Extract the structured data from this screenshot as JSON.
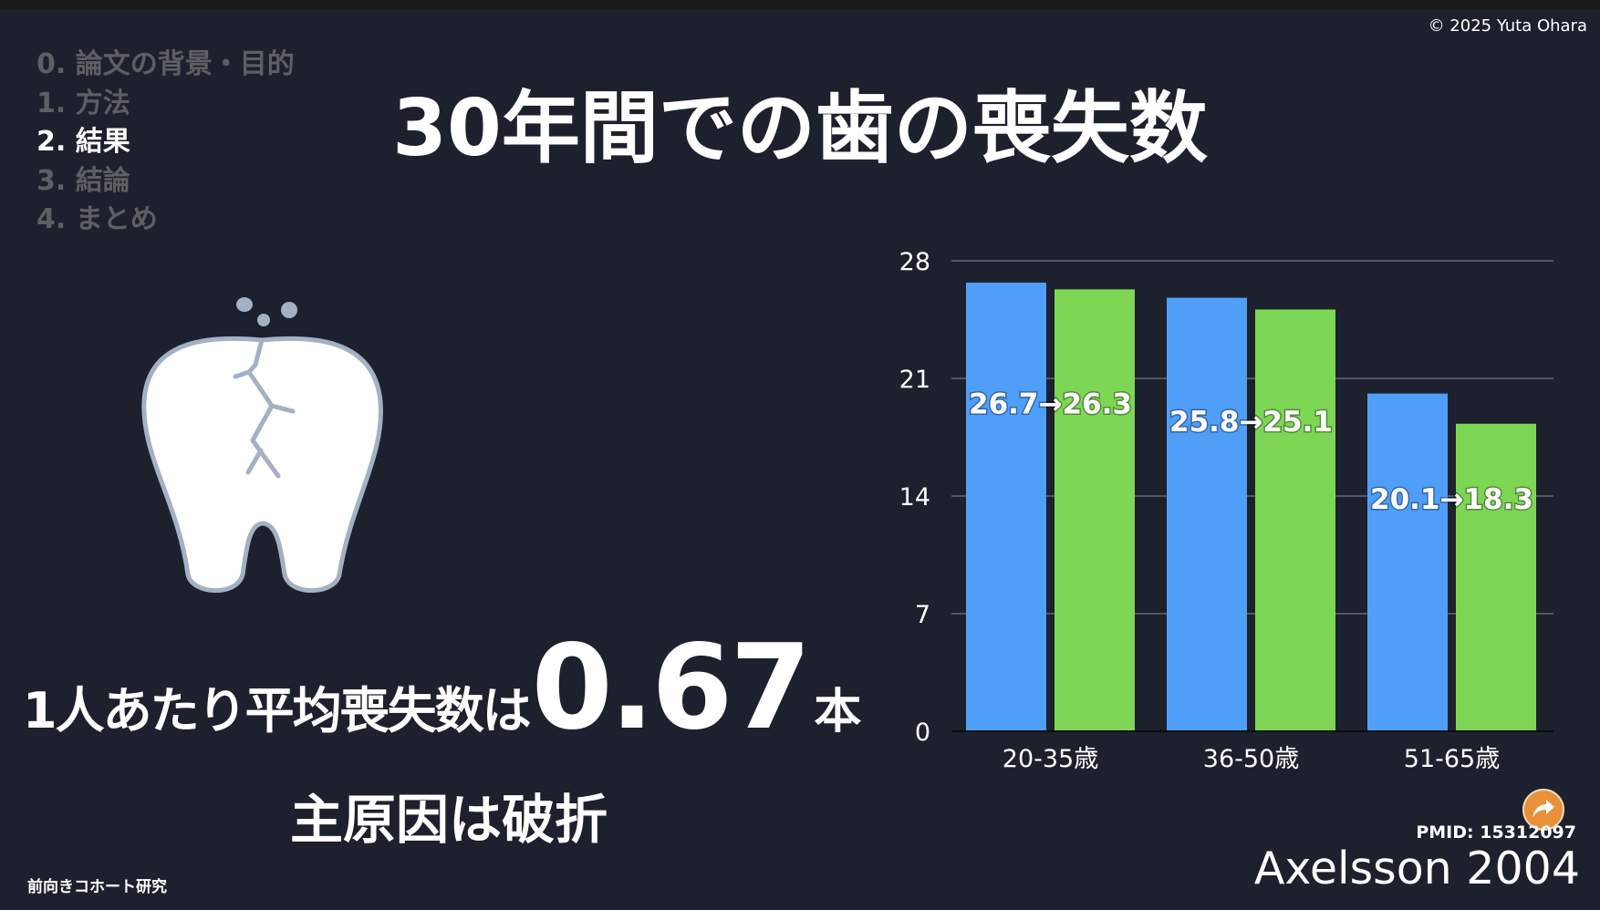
{
  "copyright": "© 2025 Yuta Ohara",
  "nav": {
    "items": [
      {
        "label": "0. 論文の背景・目的",
        "active": false
      },
      {
        "label": "1. 方法",
        "active": false
      },
      {
        "label": "2. 結果",
        "active": true
      },
      {
        "label": "3. 結論",
        "active": false
      },
      {
        "label": "4. まとめ",
        "active": false
      }
    ]
  },
  "title": "30年間での歯の喪失数",
  "summary": {
    "prefix": "1人あたり平均喪失数は",
    "value": "0.67",
    "unit": "本",
    "cause": "主原因は破折"
  },
  "study_type": "前向きコホート研究",
  "pmid": "PMID: 15312097",
  "citation": "Axelsson 2004",
  "icons": {
    "illustration": "cracked-tooth-icon",
    "share": "share-arrow-icon"
  },
  "chart_data": {
    "type": "bar",
    "categories": [
      "20-35歳",
      "36-50歳",
      "51-65歳"
    ],
    "series": [
      {
        "values": [
          26.7,
          25.8,
          20.1
        ],
        "color": "#4f9ef8"
      },
      {
        "values": [
          26.3,
          25.1,
          18.3
        ],
        "color": "#7ed655"
      }
    ],
    "data_labels": [
      "26.7→26.3",
      "25.8→25.1",
      "20.1→18.3"
    ],
    "yticks": [
      0,
      7,
      14,
      21,
      28
    ],
    "ylim": [
      0,
      28
    ],
    "grid": true
  }
}
